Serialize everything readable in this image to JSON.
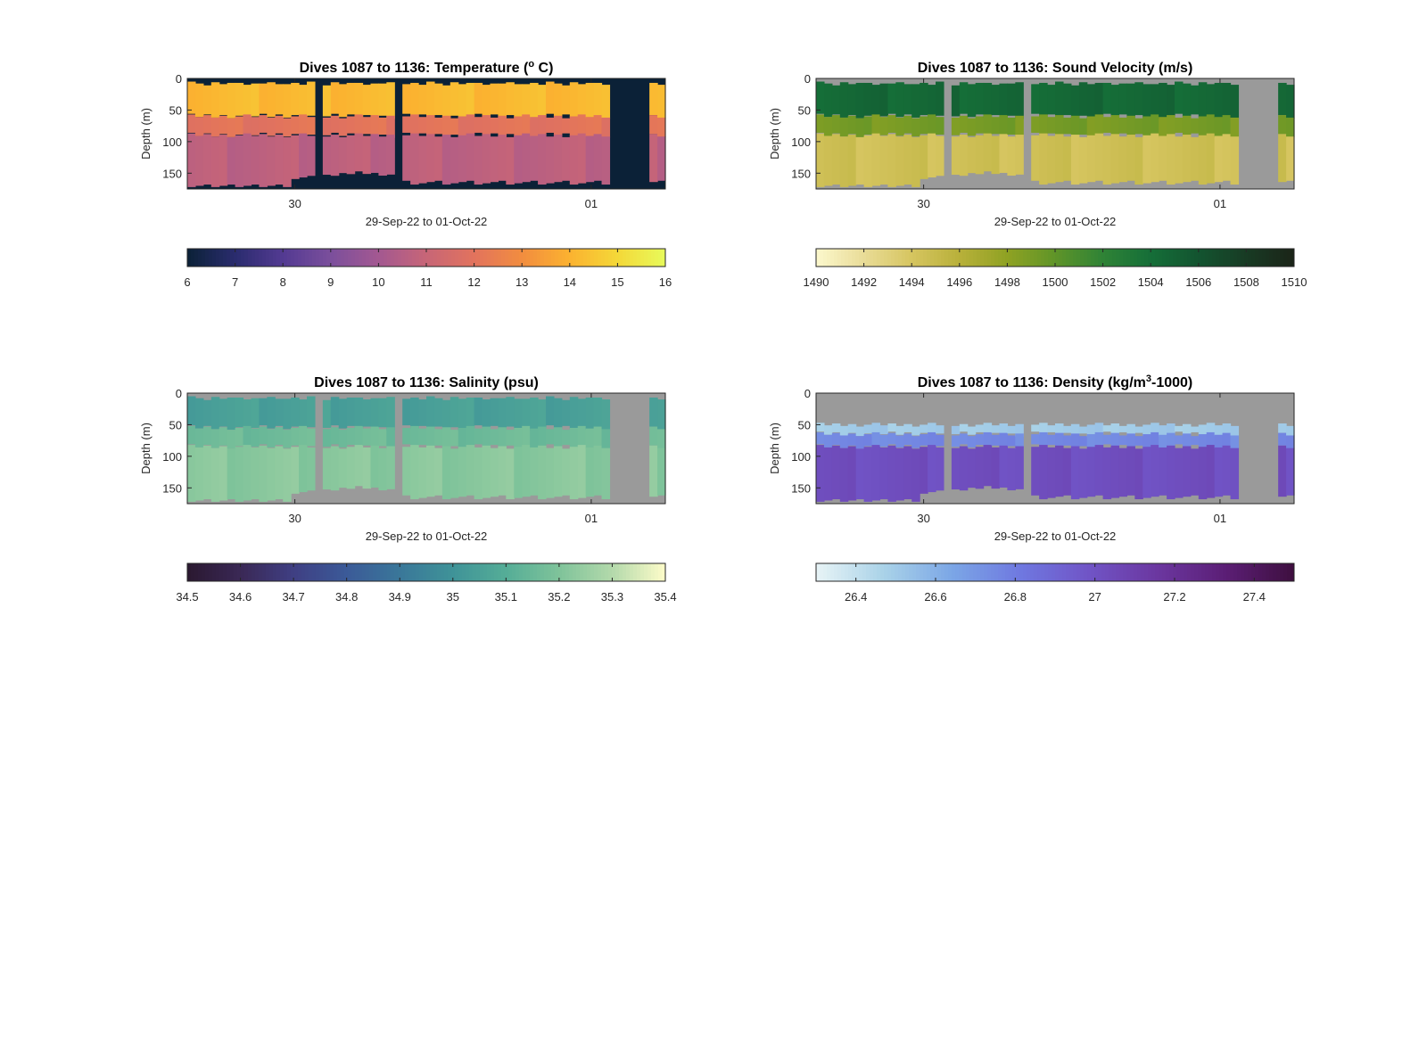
{
  "figure": {
    "background": "#ffffff"
  },
  "chart_data": [
    {
      "type": "heatmap",
      "title": "Dives 1087 to 1136: Temperature (° C)",
      "title_main": "Dives 1087 to 1136: Temperature (",
      "title_sup": "o",
      "title_end": " C)",
      "xlabel": "29-Sep-22 to 01-Oct-22",
      "ylabel": "Depth (m)",
      "xticks": [
        "30",
        "01"
      ],
      "yticks": [
        0,
        50,
        100,
        150
      ],
      "ylim": [
        0,
        175
      ],
      "missing_color": "#0b2137",
      "colorbar": {
        "min": 6,
        "max": 16,
        "ticks": [
          "6",
          "7",
          "8",
          "9",
          "10",
          "11",
          "12",
          "13",
          "14",
          "15",
          "16"
        ],
        "colors": [
          "#0b2137",
          "#2a2c6e",
          "#533a92",
          "#7b4f9c",
          "#a35891",
          "#c76577",
          "#e2735d",
          "#f28d3f",
          "#fbb230",
          "#f4d838",
          "#e8fa5b"
        ]
      },
      "layers": [
        {
          "from": "surface",
          "to": 60,
          "value": 14.2
        },
        {
          "from": 60,
          "to": 90,
          "value": 12.0
        },
        {
          "from": 90,
          "to": "bottom",
          "value": 10.7
        }
      ]
    },
    {
      "type": "heatmap",
      "title": "Dives 1087 to 1136: Sound Velocity (m/s)",
      "title_main": "Dives 1087 to 1136: Sound Velocity (m/s)",
      "title_sup": "",
      "title_end": "",
      "xlabel": "29-Sep-22 to 01-Oct-22",
      "ylabel": "Depth (m)",
      "xticks": [
        "30",
        "01"
      ],
      "yticks": [
        0,
        50,
        100,
        150
      ],
      "ylim": [
        0,
        175
      ],
      "missing_color": "#9a9a9a",
      "colorbar": {
        "min": 1490,
        "max": 1510,
        "ticks": [
          "1490",
          "1492",
          "1494",
          "1496",
          "1498",
          "1500",
          "1502",
          "1504",
          "1506",
          "1508",
          "1510"
        ],
        "colors": [
          "#fcf8cd",
          "#e9dc97",
          "#d6c560",
          "#b8b03a",
          "#8fa223",
          "#5f9428",
          "#2f8336",
          "#156e38",
          "#135430",
          "#183b24",
          "#1b2418"
        ]
      },
      "layers": [
        {
          "from": "surface",
          "to": 60,
          "value": 1504.5
        },
        {
          "from": 60,
          "to": 90,
          "value": 1499.0
        },
        {
          "from": 90,
          "to": "bottom",
          "value": 1494.5
        }
      ]
    },
    {
      "type": "heatmap",
      "title": "Dives 1087 to 1136: Salinity (psu)",
      "title_main": "Dives 1087 to 1136: Salinity (psu)",
      "title_sup": "",
      "title_end": "",
      "xlabel": "29-Sep-22 to 01-Oct-22",
      "ylabel": "Depth (m)",
      "xticks": [
        "30",
        "01"
      ],
      "yticks": [
        0,
        50,
        100,
        150
      ],
      "ylim": [
        0,
        175
      ],
      "missing_color": "#9a9a9a",
      "colorbar": {
        "min": 34.5,
        "max": 35.4,
        "ticks": [
          "34.5",
          "34.6",
          "34.7",
          "34.8",
          "34.9",
          "35",
          "35.1",
          "35.2",
          "35.3",
          "35.4"
        ],
        "colors": [
          "#2a1830",
          "#3a2855",
          "#3f3f83",
          "#3b5a98",
          "#3a7799",
          "#3f9398",
          "#55ad97",
          "#7fc39a",
          "#b3d9ab",
          "#fdfcc9"
        ]
      },
      "layers": [
        {
          "from": "surface",
          "to": 55,
          "value": 35.05
        },
        {
          "from": 55,
          "to": 85,
          "value": 35.16
        },
        {
          "from": 85,
          "to": "bottom",
          "value": 35.22
        }
      ]
    },
    {
      "type": "heatmap",
      "title": "Dives 1087 to 1136: Density (kg/m³-1000)",
      "title_main": "Dives 1087 to 1136: Density (kg/m",
      "title_sup": "3",
      "title_end": "-1000)",
      "xlabel": "29-Sep-22 to 01-Oct-22",
      "ylabel": "Depth (m)",
      "xticks": [
        "30",
        "01"
      ],
      "yticks": [
        0,
        50,
        100,
        150
      ],
      "ylim": [
        0,
        175
      ],
      "missing_color": "#9a9a9a",
      "colorbar": {
        "min": 26.3,
        "max": 27.5,
        "ticks": [
          "26.4",
          "26.6",
          "26.8",
          "27",
          "27.2",
          "27.4"
        ],
        "colors": [
          "#e8f4f6",
          "#a9d2e8",
          "#7ba6e6",
          "#6f78e0",
          "#7054c6",
          "#6b37a0",
          "#5b1e75",
          "#3e0f3f"
        ]
      },
      "layers": [
        {
          "from": 50,
          "to": 65,
          "value": 26.5
        },
        {
          "from": 65,
          "to": 85,
          "value": 26.75
        },
        {
          "from": 85,
          "to": "bottom",
          "value": 27.02
        }
      ]
    }
  ]
}
